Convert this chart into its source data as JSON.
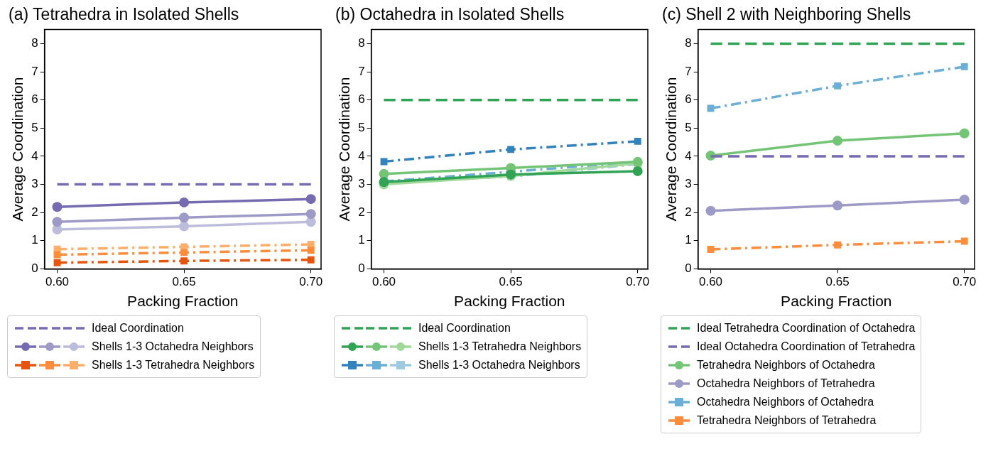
{
  "chart_data": [
    {
      "type": "line",
      "title": "(a) Tetrahedra in Isolated Shells",
      "xlabel": "Packing Fraction",
      "ylabel": "Average Coordination",
      "x": [
        0.6,
        0.65,
        0.7
      ],
      "xlim": [
        0.595,
        0.704
      ],
      "ylim": [
        0,
        8.5
      ],
      "xticks": [
        {
          "value": 0.6,
          "label": "0.60"
        },
        {
          "value": 0.65,
          "label": "0.65"
        },
        {
          "value": 0.7,
          "label": "0.70"
        }
      ],
      "yticks": [
        0,
        1,
        2,
        3,
        4,
        5,
        6,
        7,
        8
      ],
      "grid": false,
      "legend": "bottom",
      "series": [
        {
          "name": "Ideal Coordination",
          "color": "#756bb1",
          "values": [
            3,
            3,
            3
          ],
          "line_style": "dashed",
          "marker": "none"
        },
        {
          "color": "#756bb1",
          "values": [
            2.2,
            2.36,
            2.48
          ],
          "line_style": "solid",
          "marker": "circle"
        },
        {
          "color": "#9e9ac8",
          "values": [
            1.67,
            1.82,
            1.95
          ],
          "line_style": "solid",
          "marker": "circle"
        },
        {
          "name": "Shells 1-3 Octahedra Neighbors",
          "color": "#bcbddc",
          "values": [
            1.4,
            1.51,
            1.67
          ],
          "line_style": "solid",
          "marker": "circle"
        },
        {
          "color": "#e6550d",
          "values": [
            0.22,
            0.28,
            0.32
          ],
          "line_style": "dashdot",
          "marker": "square"
        },
        {
          "color": "#fd8d3c",
          "values": [
            0.5,
            0.58,
            0.66
          ],
          "line_style": "dashdot",
          "marker": "square"
        },
        {
          "name": "Shells 1-3 Tetrahedra Neighbors",
          "color": "#fdae6b",
          "values": [
            0.7,
            0.78,
            0.87
          ],
          "line_style": "dashdot",
          "marker": "square"
        }
      ]
    },
    {
      "type": "line",
      "title": "(b) Octahedra in Isolated Shells",
      "xlabel": "Packing Fraction",
      "ylabel": "Average Coordination",
      "x": [
        0.6,
        0.65,
        0.7
      ],
      "xlim": [
        0.595,
        0.704
      ],
      "ylim": [
        0,
        8.5
      ],
      "xticks": [
        {
          "value": 0.6,
          "label": "0.60"
        },
        {
          "value": 0.65,
          "label": "0.65"
        },
        {
          "value": 0.7,
          "label": "0.70"
        }
      ],
      "yticks": [
        0,
        1,
        2,
        3,
        4,
        5,
        6,
        7,
        8
      ],
      "grid": false,
      "legend": "bottom",
      "series": [
        {
          "name": "Ideal Coordination",
          "color": "#31a354",
          "values": [
            6,
            6,
            6
          ],
          "line_style": "dashed",
          "marker": "none"
        },
        {
          "color": "#31a354",
          "values": [
            3.08,
            3.35,
            3.47
          ],
          "line_style": "solid",
          "marker": "circle"
        },
        {
          "color": "#74c476",
          "values": [
            3.37,
            3.58,
            3.8
          ],
          "line_style": "solid",
          "marker": "circle"
        },
        {
          "name": "Shells 1-3 Tetrahedra Neighbors",
          "color": "#a1d99b",
          "values": [
            3.0,
            3.3,
            3.75
          ],
          "line_style": "solid",
          "marker": "circle"
        },
        {
          "color": "#3182bd",
          "values": [
            3.81,
            4.24,
            4.53
          ],
          "line_style": "dashdot",
          "marker": "square"
        },
        {
          "color": "#6baed6",
          "values": [
            3.1,
            3.45,
            3.8
          ],
          "line_style": "dashdot",
          "marker": "square"
        },
        {
          "name": "Shells 1-3 Octahedra Neighbors",
          "color": "#9ecae1",
          "values": [
            3.12,
            3.27,
            3.72
          ],
          "line_style": "dashdot",
          "marker": "square"
        }
      ]
    },
    {
      "type": "line",
      "title": "(c) Shell 2 with Neighboring Shells",
      "xlabel": "Packing Fraction",
      "ylabel": "Average Coordination",
      "x": [
        0.6,
        0.65,
        0.7
      ],
      "xlim": [
        0.595,
        0.704
      ],
      "ylim": [
        0,
        8.5
      ],
      "xticks": [
        {
          "value": 0.6,
          "label": "0.60"
        },
        {
          "value": 0.65,
          "label": "0.65"
        },
        {
          "value": 0.7,
          "label": "0.70"
        }
      ],
      "yticks": [
        0,
        1,
        2,
        3,
        4,
        5,
        6,
        7,
        8
      ],
      "grid": false,
      "legend": "bottom",
      "series": [
        {
          "name": "Ideal Tetrahedra Coordination of Octahedra",
          "color": "#31a354",
          "values": [
            8,
            8,
            8
          ],
          "line_style": "dashed",
          "marker": "none"
        },
        {
          "name": "Ideal Octahedra Coordination of Tetrahedra",
          "color": "#756bb1",
          "values": [
            4,
            4,
            4
          ],
          "line_style": "dashed",
          "marker": "none"
        },
        {
          "name": "Tetrahedra Neighbors of Octahedra",
          "color": "#74c476",
          "values": [
            4.02,
            4.55,
            4.81
          ],
          "line_style": "solid",
          "marker": "circle"
        },
        {
          "name": "Octahedra Neighbors of Tetrahedra",
          "color": "#9e9ac8",
          "values": [
            2.06,
            2.25,
            2.46
          ],
          "line_style": "solid",
          "marker": "circle"
        },
        {
          "name": "Octahedra Neighbors of Octahedra",
          "color": "#6baed6",
          "values": [
            5.7,
            6.5,
            7.18
          ],
          "line_style": "dashdot",
          "marker": "square"
        },
        {
          "name": "Tetrahedra Neighbors of Tetrahedra",
          "color": "#fd8d3c",
          "values": [
            0.69,
            0.85,
            0.98
          ],
          "line_style": "dashdot",
          "marker": "square"
        }
      ]
    }
  ]
}
